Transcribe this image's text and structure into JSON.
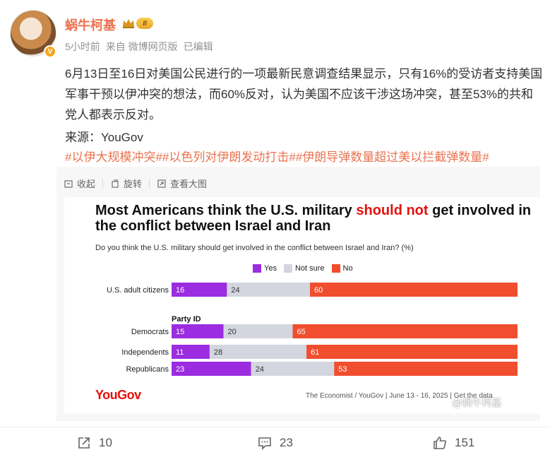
{
  "user": {
    "name": "蜗牛柯基",
    "level": "II",
    "verified": "V"
  },
  "meta": {
    "time": "5小时前",
    "source": "来自 微博网页版",
    "edited": "已编辑"
  },
  "post": {
    "text": "6月13日至16日对美国公民进行的一项最新民意调查结果显示，只有16%的受访者支持美国军事干预以伊冲突的想法，而60%反对，认为美国不应该干涉这场冲突，甚至53%的共和党人都表示反对。",
    "source_line": "来源：YouGov",
    "hashtags": "#以伊大规模冲突##以色列对伊朗发动打击##伊朗导弹数量超过美以拦截弹数量#"
  },
  "tools": {
    "collapse": "收起",
    "rotate": "旋转",
    "view_large": "查看大图"
  },
  "chart_data": {
    "type": "bar",
    "stacked": true,
    "title_prefix": "Most Americans think the U.S. military ",
    "title_highlight": "should not",
    "title_suffix": " get involved in the conflict between Israel and Iran",
    "subtitle": "Do you think the U.S. military should get involved in the conflict between Israel and Iran? (%)",
    "legend": [
      "Yes",
      "Not sure",
      "No"
    ],
    "colors": {
      "Yes": "#9b2ce0",
      "Not sure": "#d3d6df",
      "No": "#f04e2e"
    },
    "group_label": "Party ID",
    "categories": [
      "U.S. adult citizens",
      "Democrats",
      "Independents",
      "Republicans"
    ],
    "series": [
      {
        "name": "Yes",
        "values": [
          16,
          15,
          11,
          23
        ]
      },
      {
        "name": "Not sure",
        "values": [
          24,
          20,
          28,
          24
        ]
      },
      {
        "name": "No",
        "values": [
          60,
          65,
          61,
          53
        ]
      }
    ],
    "xlim": [
      0,
      100
    ],
    "logo": "YouGov",
    "footer": "The Economist / YouGov | June 13 - 16, 2025 | Get the data"
  },
  "watermark": "@蜗牛柯基",
  "actions": {
    "share_count": "10",
    "comment_count": "23",
    "like_count": "151"
  }
}
